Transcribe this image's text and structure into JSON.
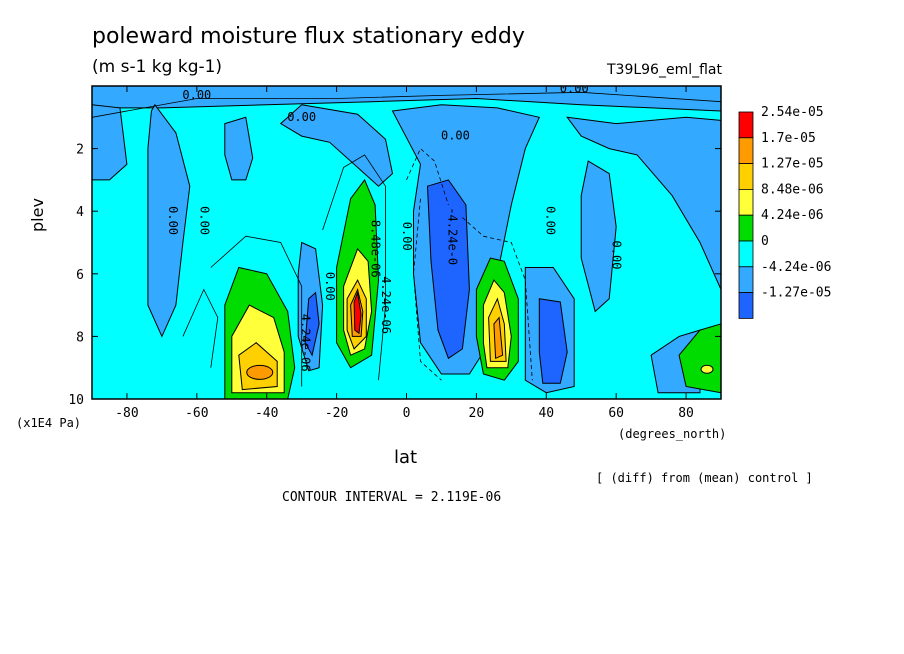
{
  "chart_data": {
    "type": "contour",
    "title": "poleward moisture flux stationary eddy",
    "units": "(m s-1 kg kg-1)",
    "experiment": "T39L96_eml_flat",
    "ylabel": "plev",
    "yunits": "(x1E4 Pa)",
    "xlabel": "lat",
    "xunits": "(degrees_north)",
    "note": "[ (diff) from (mean) control ]",
    "contour_interval": "CONTOUR INTERVAL = 2.119E-06",
    "xlim": [
      -90,
      90
    ],
    "ylim": [
      10,
      0
    ],
    "x_ticks": [
      -80,
      -60,
      -40,
      -20,
      0,
      20,
      40,
      60,
      80
    ],
    "y_ticks": [
      2,
      4,
      6,
      8,
      10
    ],
    "legend": {
      "labels": [
        "2.54e-05",
        "1.7e-05",
        "1.27e-05",
        "8.48e-06",
        "4.24e-06",
        "0",
        "-4.24e-06",
        "-1.27e-05"
      ],
      "colors": [
        "#ff0000",
        "#ff9b00",
        "#ffd000",
        "#ffff3a",
        "#00dc00",
        "#00ffff",
        "#33aaff",
        "#1e64ff"
      ]
    },
    "fill_colors": {
      "neg_strong": "#1e64ff",
      "neg": "#33aaff",
      "near_zero": "#00ffff",
      "pos1": "#00dc00",
      "pos2": "#ffff3a",
      "pos3": "#ffd000",
      "pos4": "#ff9b00",
      "pos5": "#ff0000"
    },
    "features": [
      {
        "name": "positive maximum",
        "lat": -42,
        "plev": 9.1,
        "value": 1.7e-05
      },
      {
        "name": "positive maximum",
        "lat": -14,
        "plev": 7.2,
        "value": 2.54e-05
      },
      {
        "name": "positive maximum",
        "lat": 26,
        "plev": 8.2,
        "value": 1.7e-05
      },
      {
        "name": "positive maximum",
        "lat": 86,
        "plev": 9.0,
        "value": 8.48e-06
      },
      {
        "name": "negative minimum",
        "lat": 13,
        "plev": 5.8,
        "value": -1.27e-05
      },
      {
        "name": "negative minimum",
        "lat": 44,
        "plev": 8.0,
        "value": -4.24e-06
      },
      {
        "name": "negative minimum",
        "lat": -25,
        "plev": 7.5,
        "value": -4.24e-06
      }
    ],
    "contour_labels": [
      {
        "text": "0.00",
        "lat": -60,
        "plev": 0.3
      },
      {
        "text": "0.00",
        "lat": 48,
        "plev": 0.1
      },
      {
        "text": "0.00",
        "lat": -30,
        "plev": 1.0
      },
      {
        "text": "0.00",
        "lat": 14,
        "plev": 1.6
      },
      {
        "text": "0.00",
        "lat": -67,
        "plev": 4.3
      },
      {
        "text": "0.00",
        "lat": -58,
        "plev": 4.3
      },
      {
        "text": "0.00",
        "lat": 41,
        "plev": 4.3
      },
      {
        "text": "0.00",
        "lat": 60,
        "plev": 5.4
      },
      {
        "text": "0.00",
        "lat": 0,
        "plev": 4.8
      },
      {
        "text": "0.00",
        "lat": -22,
        "plev": 6.4
      },
      {
        "text": "-4.24e-0",
        "lat": 13,
        "plev": 4.8
      },
      {
        "text": "8.48e-06",
        "lat": -9,
        "plev": 5.2
      },
      {
        "text": "4.24e-06",
        "lat": -6,
        "plev": 7.0
      },
      {
        "text": "4.24e-06",
        "lat": -29,
        "plev": 8.2
      }
    ]
  }
}
